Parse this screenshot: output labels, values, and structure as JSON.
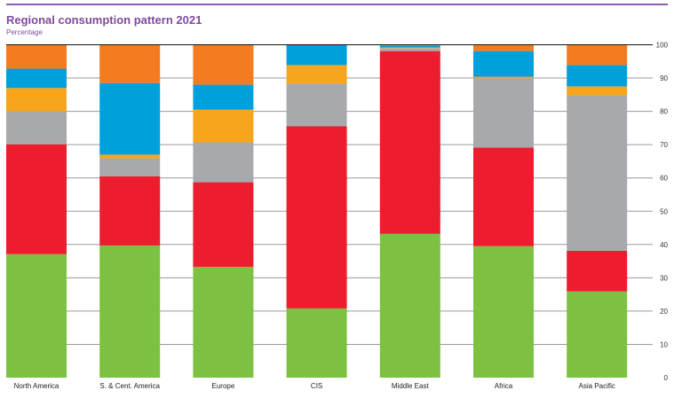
{
  "chart_data": {
    "type": "bar",
    "stacked": true,
    "title": "Regional consumption pattern 2021",
    "subtitle": "Percentage",
    "xlabel": "",
    "ylabel": "",
    "ylim": [
      0,
      100
    ],
    "yticks": [
      0,
      10,
      20,
      30,
      40,
      50,
      60,
      70,
      80,
      90,
      100
    ],
    "grid": true,
    "legend": "none",
    "categories": [
      "North America",
      "S. & Cent. America",
      "Europe",
      "CIS",
      "Middle East",
      "Africa",
      "Asia Pacific"
    ],
    "series": [
      {
        "color": "#7dc142",
        "values": [
          37.1,
          39.7,
          33.3,
          20.8,
          43.2,
          39.5,
          25.9
        ]
      },
      {
        "color": "#ed1c2e",
        "values": [
          33.0,
          20.8,
          25.4,
          54.7,
          54.9,
          29.6,
          12.2
        ]
      },
      {
        "color": "#a8a9ad",
        "values": [
          9.9,
          5.4,
          12.0,
          12.8,
          0.9,
          20.8,
          46.7
        ]
      },
      {
        "color": "#f7a51c",
        "values": [
          7.0,
          1.1,
          9.8,
          5.6,
          0.2,
          0.5,
          2.7
        ]
      },
      {
        "color": "#00a0dc",
        "values": [
          5.8,
          21.5,
          7.5,
          6.1,
          0.5,
          7.7,
          6.4
        ]
      },
      {
        "color": "#f47b20",
        "values": [
          7.2,
          11.5,
          12.0,
          0.0,
          0.3,
          1.9,
          6.1
        ]
      }
    ]
  }
}
